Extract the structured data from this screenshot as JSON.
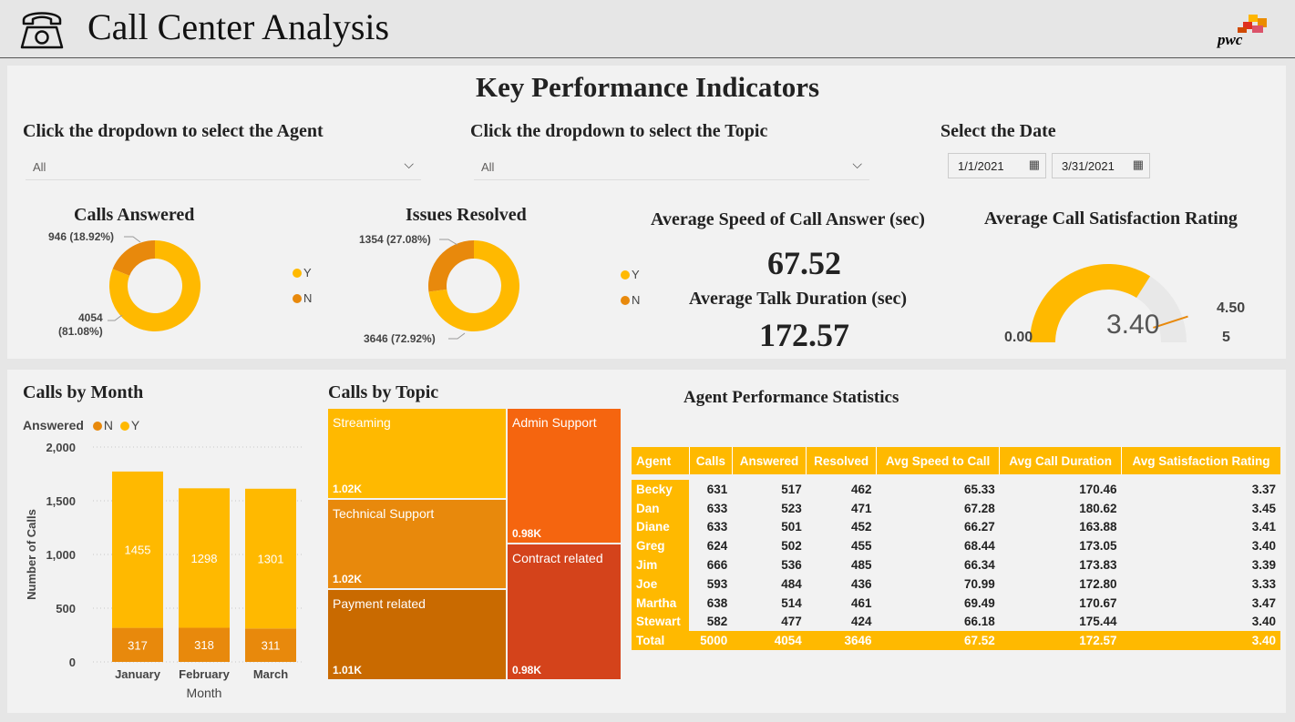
{
  "header": {
    "title": "Call Center Analysis",
    "logo_text": "pwc"
  },
  "kpi": {
    "title": "Key Performance Indicators",
    "agent_filter": {
      "label": "Click the dropdown to select the Agent",
      "value": "All"
    },
    "topic_filter": {
      "label": "Click the dropdown to select the Topic",
      "value": "All"
    },
    "date_filter": {
      "label": "Select the Date",
      "start": "1/1/2021",
      "end": "3/31/2021"
    },
    "calls_answered": {
      "title": "Calls Answered",
      "legend": [
        "Y",
        "N"
      ],
      "y_value": 4054,
      "y_pct": "(81.08%)",
      "y_label": "4054",
      "n_value": 946,
      "n_label": "946 (18.92%)"
    },
    "issues_resolved": {
      "title": "Issues Resolved",
      "legend": [
        "Y",
        "N"
      ],
      "y_value": 3646,
      "y_label": "3646 (72.92%)",
      "n_value": 1354,
      "n_label": "1354 (27.08%)"
    },
    "avg_speed": {
      "title": "Average Speed of Call Answer (sec)",
      "value": "67.52"
    },
    "avg_talk": {
      "title": "Average Talk Duration (sec)",
      "value": "172.57"
    },
    "satisfaction": {
      "title": "Average Call Satisfaction Rating",
      "value": 3.4,
      "value_label": "3.40",
      "min": 0,
      "min_label": "0.00",
      "max": 5,
      "max_label": "5",
      "target": 4.5,
      "target_label": "4.50"
    }
  },
  "colors": {
    "Y": "#ffb900",
    "N": "#e8890c",
    "header": "#ffb900"
  },
  "calls_by_month": {
    "title": "Calls by Month",
    "legend_title": "Answered",
    "legend": [
      "N",
      "Y"
    ],
    "xlabel": "Month",
    "ylabel": "Number of Calls",
    "yticks": [
      "2,000",
      "1,500",
      "1,000",
      "500",
      "0"
    ]
  },
  "calls_by_topic": {
    "title": "Calls by Topic",
    "tiles": [
      {
        "label": "Streaming",
        "value": "1.02K",
        "color": "#ffb900"
      },
      {
        "label": "Technical Support",
        "value": "1.02K",
        "color": "#e8890c"
      },
      {
        "label": "Payment related",
        "value": "1.01K",
        "color": "#c96a00"
      },
      {
        "label": "Admin Support",
        "value": "0.98K",
        "color": "#f5650f"
      },
      {
        "label": "Contract related",
        "value": "0.98K",
        "color": "#d4431b"
      }
    ]
  },
  "agent_stats": {
    "title": "Agent Performance Statistics",
    "columns": [
      "Agent",
      "Calls",
      "Answered",
      "Resolved",
      "Avg Speed to Call",
      "Avg Call Duration",
      "Avg Satisfaction Rating"
    ],
    "rows": [
      [
        "Becky",
        "631",
        "517",
        "462",
        "65.33",
        "170.46",
        "3.37"
      ],
      [
        "Dan",
        "633",
        "523",
        "471",
        "67.28",
        "180.62",
        "3.45"
      ],
      [
        "Diane",
        "633",
        "501",
        "452",
        "66.27",
        "163.88",
        "3.41"
      ],
      [
        "Greg",
        "624",
        "502",
        "455",
        "68.44",
        "173.05",
        "3.40"
      ],
      [
        "Jim",
        "666",
        "536",
        "485",
        "66.34",
        "173.83",
        "3.39"
      ],
      [
        "Joe",
        "593",
        "484",
        "436",
        "70.99",
        "172.80",
        "3.33"
      ],
      [
        "Martha",
        "638",
        "514",
        "461",
        "69.49",
        "170.67",
        "3.47"
      ],
      [
        "Stewart",
        "582",
        "477",
        "424",
        "66.18",
        "175.44",
        "3.40"
      ]
    ],
    "total": [
      "Total",
      "5000",
      "4054",
      "3646",
      "67.52",
      "172.57",
      "3.40"
    ]
  },
  "chart_data": {
    "type": "bar",
    "title": "Calls by Month",
    "categories": [
      "January",
      "February",
      "March"
    ],
    "series": [
      {
        "name": "N",
        "values": [
          317,
          318,
          311
        ]
      },
      {
        "name": "Y",
        "values": [
          1455,
          1298,
          1301
        ]
      }
    ],
    "stacked": true,
    "xlabel": "Month",
    "ylabel": "Number of Calls",
    "ylim": [
      0,
      2000
    ]
  }
}
